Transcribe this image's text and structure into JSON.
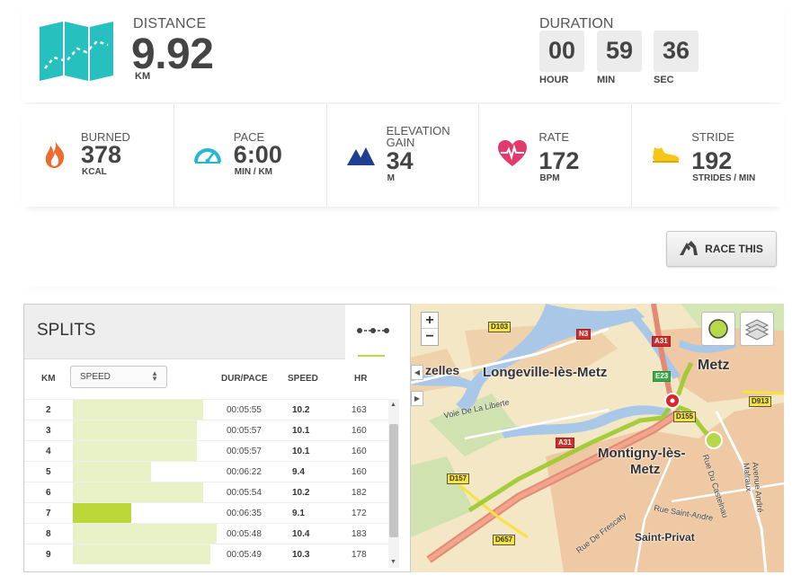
{
  "summary": {
    "distance_label": "DISTANCE",
    "distance_value": "9.92",
    "distance_unit": "KM",
    "duration_label": "DURATION",
    "hours": "00",
    "minutes": "59",
    "seconds": "36",
    "hours_unit": "HOUR",
    "minutes_unit": "MIN",
    "seconds_unit": "SEC"
  },
  "stats": [
    {
      "label": "BURNED",
      "value": "378",
      "unit": "KCAL",
      "icon": "flame-icon"
    },
    {
      "label": "PACE",
      "value": "6:00",
      "unit": "MIN / KM",
      "icon": "speedometer-icon"
    },
    {
      "label_line1": "ELEVATION",
      "label_line2": "GAIN",
      "value": "34",
      "unit": "M",
      "icon": "mountains-icon"
    },
    {
      "label": "RATE",
      "value": "172",
      "unit": "BPM",
      "icon": "heart-rate-icon"
    },
    {
      "label": "STRIDE",
      "value": "192",
      "unit": "STRIDES / MIN",
      "icon": "shoe-icon"
    }
  ],
  "race_button_label": "RACE THIS",
  "splits": {
    "title": "SPLITS",
    "col_km": "KM",
    "select_value": "SPEED",
    "col_pace": "DUR/PACE",
    "col_speed": "SPEED",
    "col_hr": "HR",
    "bar_max_speed": 10.4,
    "rows": [
      {
        "km": "2",
        "pace": "00:05:55",
        "speed": "10.2",
        "hr": "163",
        "speed_num": 10.2,
        "highlight": false
      },
      {
        "km": "3",
        "pace": "00:05:57",
        "speed": "10.1",
        "hr": "160",
        "speed_num": 10.1,
        "highlight": false
      },
      {
        "km": "4",
        "pace": "00:05:57",
        "speed": "10.1",
        "hr": "160",
        "speed_num": 10.1,
        "highlight": false
      },
      {
        "km": "5",
        "pace": "00:06:22",
        "speed": "9.4",
        "hr": "160",
        "speed_num": 9.4,
        "highlight": false
      },
      {
        "km": "6",
        "pace": "00:05:54",
        "speed": "10.2",
        "hr": "182",
        "speed_num": 10.2,
        "highlight": false
      },
      {
        "km": "7",
        "pace": "00:06:35",
        "speed": "9.1",
        "hr": "172",
        "speed_num": 9.1,
        "highlight": true
      },
      {
        "km": "8",
        "pace": "00:05:48",
        "speed": "10.4",
        "hr": "183",
        "speed_num": 10.4,
        "highlight": false
      },
      {
        "km": "9",
        "pace": "00:05:49",
        "speed": "10.3",
        "hr": "178",
        "speed_num": 10.3,
        "highlight": false
      }
    ]
  },
  "map": {
    "zoom_in": "+",
    "zoom_out": "−",
    "places": {
      "metz": "Metz",
      "longeville": "Longeville-lès-Metz",
      "montigny_1": "Montigny-lès-",
      "montigny_2": "Metz",
      "saint_privat": "Saint-Privat",
      "zelles": "zelles"
    },
    "streets": {
      "voie": "Voie De La Liberte",
      "st_andre": "Rue Saint-Andre",
      "frescaty": "Rue De Frescaty",
      "castelnau": "Rue Du Castelnau",
      "malraux": "Avenue André Malraux"
    },
    "road_labels": {
      "d103": "D103",
      "n3": "N3",
      "a31_top": "A31",
      "e23": "E23",
      "d913": "D913",
      "a31_mid": "A31",
      "d155": "D155",
      "d157": "D157",
      "d657": "D657"
    },
    "colors": {
      "route": "#9dc92f",
      "start_marker": "#d9262a",
      "end_marker": "#b7d84a",
      "water": "#a9c8e8"
    }
  }
}
